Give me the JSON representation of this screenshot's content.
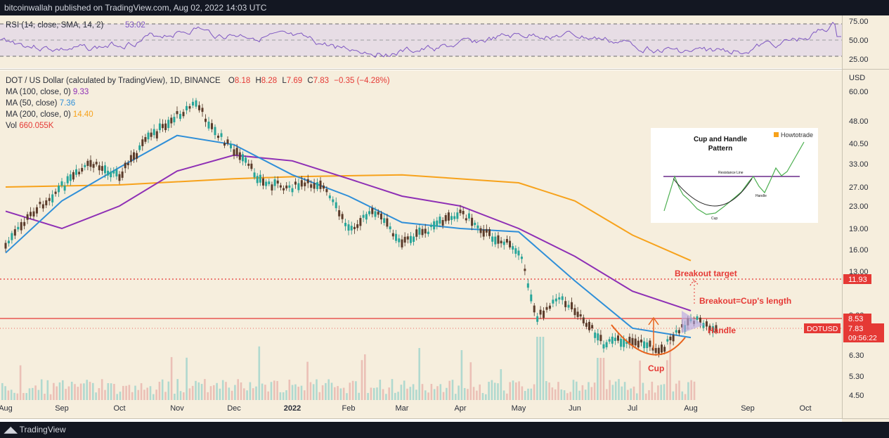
{
  "header": {
    "published": "bitcoinwallah published on TradingView.com, Aug 02, 2022 14:03 UTC"
  },
  "footer": {
    "brand": "TradingView"
  },
  "colors": {
    "bg": "#f6eedd",
    "up": "#26a69a",
    "down": "#5b3b2a",
    "ma100": "#8e2fb5",
    "ma50": "#2f8fd8",
    "ma200": "#f7a21b",
    "rsi": "#7e57c2",
    "red": "#e53935",
    "orange": "#e8631d"
  },
  "rsi": {
    "label": "RSI (14, close, SMA, 14, 2)",
    "value": "53.02",
    "levels": [
      "75.00",
      "50.00",
      "25.00"
    ]
  },
  "legend": {
    "symbol": "DOT / US Dollar (calculated by TradingView), 1D, BINANCE",
    "o_label": "O",
    "o": "8.18",
    "h_label": "H",
    "h": "8.28",
    "l_label": "L",
    "l": "7.69",
    "c_label": "C",
    "c": "7.83",
    "chg": "−0.35 (−4.28%)",
    "ma100_label": "MA (100, close, 0)",
    "ma100": "9.33",
    "ma50_label": "MA (50, close)",
    "ma50": "7.36",
    "ma200_label": "MA (200, close, 0)",
    "ma200": "14.40",
    "vol_label": "Vol",
    "vol": "660.055K"
  },
  "chart_data": {
    "type": "line",
    "ylabel": "USD",
    "y_ticks": [
      "60.00",
      "48.00",
      "40.50",
      "33.00",
      "27.00",
      "23.00",
      "19.00",
      "16.00",
      "13.00",
      "9.00",
      "6.30",
      "5.30",
      "4.50"
    ],
    "x_ticks": [
      "Aug",
      "Sep",
      "Oct",
      "Nov",
      "Dec",
      "2022",
      "Feb",
      "Mar",
      "Apr",
      "May",
      "Jun",
      "Jul",
      "Aug",
      "Sep",
      "Oct"
    ],
    "price_tags": {
      "resistance": "8.53",
      "target": "11.93",
      "symbol": "DOTUSD",
      "last": "7.83",
      "countdown": "09:56:22"
    },
    "annotations": {
      "breakout_target": "Breakout target",
      "breakout_eq": "Breakout=Cup's length",
      "handle": "Handle",
      "cup": "Cup"
    },
    "price_path": [
      [
        "Aug",
        16.5
      ],
      [
        "Aug",
        22
      ],
      [
        "Sep",
        27
      ],
      [
        "Sep",
        33
      ],
      [
        "Oct",
        30
      ],
      [
        "Oct",
        42
      ],
      [
        "Nov",
        50
      ],
      [
        "Nov",
        55
      ],
      [
        "Nov",
        44
      ],
      [
        "Dec",
        38
      ],
      [
        "Dec",
        28
      ],
      [
        "2022",
        27
      ],
      [
        "2022",
        28
      ],
      [
        "Feb",
        19
      ],
      [
        "Feb",
        22
      ],
      [
        "Mar",
        17
      ],
      [
        "Mar",
        19
      ],
      [
        "Apr",
        22
      ],
      [
        "Apr",
        18
      ],
      [
        "May",
        16
      ],
      [
        "May",
        8.7
      ],
      [
        "May",
        10.5
      ],
      [
        "Jun",
        9.5
      ],
      [
        "Jun",
        7
      ],
      [
        "Jul",
        7.2
      ],
      [
        "Jul",
        6.6
      ],
      [
        "Aug",
        8.7
      ],
      [
        "Aug",
        7.83
      ]
    ],
    "ma50_path": [
      [
        "Aug",
        15.5
      ],
      [
        "Sep",
        24
      ],
      [
        "Oct",
        32
      ],
      [
        "Nov",
        43
      ],
      [
        "Dec",
        40
      ],
      [
        "2022",
        30
      ],
      [
        "Feb",
        25
      ],
      [
        "Mar",
        20
      ],
      [
        "Apr",
        19
      ],
      [
        "May",
        18.5
      ],
      [
        "Jun",
        12
      ],
      [
        "Jul",
        8
      ],
      [
        "Aug",
        7.36
      ]
    ],
    "ma100_path": [
      [
        "Aug",
        22
      ],
      [
        "Sep",
        19
      ],
      [
        "Oct",
        23
      ],
      [
        "Nov",
        31
      ],
      [
        "Dec",
        36
      ],
      [
        "2022",
        34
      ],
      [
        "Feb",
        29
      ],
      [
        "Mar",
        25
      ],
      [
        "Apr",
        23
      ],
      [
        "May",
        19
      ],
      [
        "Jun",
        15
      ],
      [
        "Jul",
        11
      ],
      [
        "Aug",
        9.33
      ]
    ],
    "ma200_path": [
      [
        "Aug",
        27
      ],
      [
        "Oct",
        27.5
      ],
      [
        "Dec",
        29
      ],
      [
        "2022",
        29.5
      ],
      [
        "Mar",
        30
      ],
      [
        "May",
        28
      ],
      [
        "Jun",
        24
      ],
      [
        "Jul",
        18
      ],
      [
        "Aug",
        14.4
      ]
    ]
  },
  "inset": {
    "title1": "Cup and Handle",
    "title2": "Pattern",
    "brand": "Howtotrade",
    "resistance": "Resistance Line",
    "cup": "Cup",
    "handle": "Handle"
  }
}
